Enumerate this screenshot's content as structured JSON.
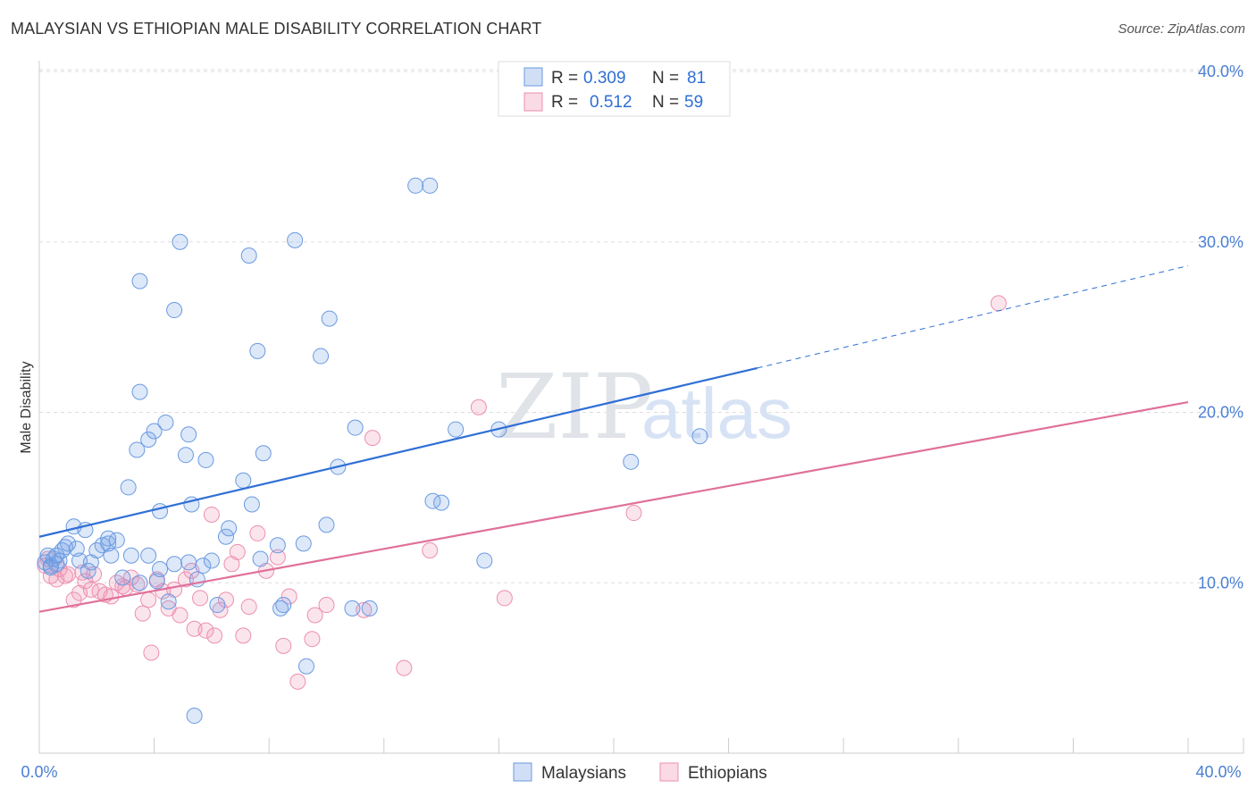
{
  "title": "MALAYSIAN VS ETHIOPIAN MALE DISABILITY CORRELATION CHART",
  "source": "Source: ZipAtlas.com",
  "watermark": {
    "zip": "ZIP",
    "atlas": "atlas"
  },
  "colors": {
    "malaysian_fill": "rgba(120,164,230,0.25)",
    "malaysian_stroke": "#6a9ae0",
    "malaysian_line": "#2f6fd6",
    "ethiopian_fill": "rgba(240,150,180,0.25)",
    "ethiopian_stroke": "#ec8fb0",
    "ethiopian_line": "#e0709a",
    "grid": "#dddddd",
    "tick_text": "#4a7fd4"
  },
  "chart_data": {
    "type": "scatter",
    "title": "MALAYSIAN VS ETHIOPIAN MALE DISABILITY CORRELATION CHART",
    "xlabel": "",
    "ylabel": "Male Disability",
    "xlim": [
      0,
      40
    ],
    "ylim": [
      0,
      40
    ],
    "x_tick_labels": [
      "0.0%",
      "40.0%"
    ],
    "y_ticks": [
      10,
      20,
      30,
      40
    ],
    "y_tick_labels": [
      "10.0%",
      "20.0%",
      "30.0%",
      "40.0%"
    ],
    "legend": [
      {
        "r_label": "R =",
        "r": "0.309",
        "n_label": "N =",
        "n": "81"
      },
      {
        "r_label": "R =",
        "r": "0.512",
        "n_label": "N =",
        "n": "59"
      }
    ],
    "series": [
      {
        "name": "Malaysians",
        "trend": {
          "x0": 0,
          "y0": 12.7,
          "x1": 25,
          "y1": 22.6,
          "dash_to_x": 40,
          "dash_to_y": 28.6
        },
        "points": [
          [
            0.2,
            11.2
          ],
          [
            0.3,
            11.6
          ],
          [
            0.4,
            11.0
          ],
          [
            0.5,
            11.4
          ],
          [
            0.6,
            11.1
          ],
          [
            0.7,
            11.3
          ],
          [
            0.8,
            11.9
          ],
          [
            0.9,
            12.1
          ],
          [
            1.0,
            12.3
          ],
          [
            1.2,
            13.3
          ],
          [
            1.3,
            12.0
          ],
          [
            1.4,
            11.3
          ],
          [
            1.6,
            13.1
          ],
          [
            1.7,
            10.7
          ],
          [
            1.8,
            11.2
          ],
          [
            2.0,
            11.9
          ],
          [
            2.2,
            12.2
          ],
          [
            2.4,
            12.3
          ],
          [
            2.5,
            11.6
          ],
          [
            2.7,
            12.5
          ],
          [
            2.9,
            10.3
          ],
          [
            3.1,
            15.6
          ],
          [
            3.2,
            11.6
          ],
          [
            3.4,
            17.8
          ],
          [
            3.5,
            10.0
          ],
          [
            3.5,
            27.7
          ],
          [
            3.5,
            21.2
          ],
          [
            3.8,
            11.6
          ],
          [
            3.8,
            18.4
          ],
          [
            4.0,
            18.9
          ],
          [
            4.1,
            10.1
          ],
          [
            4.2,
            14.2
          ],
          [
            4.2,
            10.8
          ],
          [
            4.4,
            19.4
          ],
          [
            4.5,
            8.9
          ],
          [
            4.7,
            11.1
          ],
          [
            4.7,
            26.0
          ],
          [
            4.9,
            30.0
          ],
          [
            5.1,
            17.5
          ],
          [
            5.2,
            18.7
          ],
          [
            5.2,
            11.2
          ],
          [
            5.3,
            14.6
          ],
          [
            5.4,
            2.2
          ],
          [
            5.7,
            11.0
          ],
          [
            5.8,
            17.2
          ],
          [
            6.0,
            11.3
          ],
          [
            6.2,
            8.7
          ],
          [
            6.5,
            12.7
          ],
          [
            6.6,
            13.2
          ],
          [
            7.1,
            16.0
          ],
          [
            7.3,
            29.2
          ],
          [
            7.4,
            14.6
          ],
          [
            7.6,
            23.6
          ],
          [
            7.7,
            11.4
          ],
          [
            7.8,
            17.6
          ],
          [
            8.3,
            12.2
          ],
          [
            8.4,
            8.5
          ],
          [
            8.5,
            8.7
          ],
          [
            8.9,
            30.1
          ],
          [
            9.2,
            12.3
          ],
          [
            9.3,
            5.1
          ],
          [
            9.8,
            23.3
          ],
          [
            10.0,
            13.4
          ],
          [
            10.1,
            25.5
          ],
          [
            10.4,
            16.8
          ],
          [
            10.9,
            8.5
          ],
          [
            11.0,
            19.1
          ],
          [
            11.5,
            8.5
          ],
          [
            13.1,
            33.3
          ],
          [
            13.6,
            33.3
          ],
          [
            13.7,
            14.8
          ],
          [
            14.0,
            14.7
          ],
          [
            14.5,
            19.0
          ],
          [
            15.5,
            11.3
          ],
          [
            16.0,
            19.0
          ],
          [
            20.6,
            17.1
          ],
          [
            23.0,
            18.6
          ],
          [
            0.4,
            10.9
          ],
          [
            0.6,
            11.6
          ],
          [
            2.4,
            12.6
          ],
          [
            5.5,
            10.2
          ]
        ]
      },
      {
        "name": "Ethiopians",
        "trend": {
          "x0": 0,
          "y0": 8.3,
          "x1": 40,
          "y1": 20.6
        },
        "points": [
          [
            0.2,
            11.0
          ],
          [
            0.3,
            11.4
          ],
          [
            0.4,
            10.4
          ],
          [
            0.6,
            10.2
          ],
          [
            0.7,
            10.8
          ],
          [
            0.9,
            10.4
          ],
          [
            1.0,
            10.5
          ],
          [
            1.2,
            9.0
          ],
          [
            1.4,
            9.4
          ],
          [
            1.5,
            10.6
          ],
          [
            1.6,
            10.1
          ],
          [
            1.8,
            9.6
          ],
          [
            1.9,
            10.5
          ],
          [
            2.1,
            9.5
          ],
          [
            2.3,
            9.3
          ],
          [
            2.5,
            9.2
          ],
          [
            2.7,
            10.0
          ],
          [
            2.9,
            9.8
          ],
          [
            3.0,
            9.7
          ],
          [
            3.2,
            10.3
          ],
          [
            3.4,
            9.9
          ],
          [
            3.6,
            8.2
          ],
          [
            3.8,
            9.0
          ],
          [
            3.9,
            5.9
          ],
          [
            4.1,
            10.2
          ],
          [
            4.3,
            9.5
          ],
          [
            4.5,
            8.5
          ],
          [
            4.7,
            9.6
          ],
          [
            4.9,
            8.1
          ],
          [
            5.1,
            10.2
          ],
          [
            5.3,
            10.7
          ],
          [
            5.4,
            7.3
          ],
          [
            5.6,
            9.1
          ],
          [
            5.8,
            7.2
          ],
          [
            6.0,
            14.0
          ],
          [
            6.1,
            6.9
          ],
          [
            6.3,
            8.4
          ],
          [
            6.5,
            9.0
          ],
          [
            6.7,
            11.1
          ],
          [
            6.9,
            11.8
          ],
          [
            7.1,
            6.9
          ],
          [
            7.3,
            8.6
          ],
          [
            7.6,
            12.9
          ],
          [
            7.9,
            10.7
          ],
          [
            8.3,
            11.5
          ],
          [
            8.5,
            6.3
          ],
          [
            8.7,
            9.2
          ],
          [
            9.0,
            4.2
          ],
          [
            9.5,
            6.7
          ],
          [
            9.6,
            8.1
          ],
          [
            10.0,
            8.7
          ],
          [
            11.3,
            8.4
          ],
          [
            11.6,
            18.5
          ],
          [
            12.7,
            5.0
          ],
          [
            13.6,
            11.9
          ],
          [
            15.3,
            20.3
          ],
          [
            16.2,
            9.1
          ],
          [
            20.7,
            14.1
          ],
          [
            33.4,
            26.4
          ]
        ]
      }
    ]
  }
}
